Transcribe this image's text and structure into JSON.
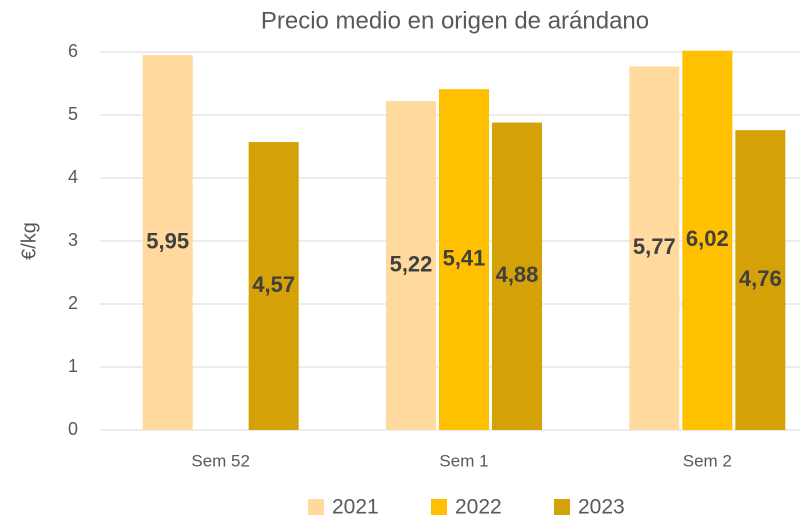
{
  "chart_data": {
    "type": "bar",
    "title": "Precio medio en origen de arándano",
    "y_label": "€/kg",
    "categories": [
      "Sem 52",
      "Sem 1",
      "Sem 2"
    ],
    "series": [
      {
        "name": "2021",
        "color": "#FFD99E",
        "values": [
          5.95,
          5.22,
          5.77
        ],
        "value_labels": [
          "5,95",
          "5,22",
          "5,77"
        ]
      },
      {
        "name": "2022",
        "color": "#FFC000",
        "values": [
          null,
          5.41,
          6.02
        ],
        "value_labels": [
          null,
          "5,41",
          "6,02"
        ]
      },
      {
        "name": "2023",
        "color": "#D4A106",
        "values": [
          4.57,
          4.88,
          4.76
        ],
        "value_labels": [
          "4,57",
          "4,88",
          "4,76"
        ]
      }
    ],
    "ylim": [
      0,
      6
    ],
    "yticks": [
      0,
      1,
      2,
      3,
      4,
      5,
      6
    ],
    "grid": true,
    "legend": "bottom"
  }
}
